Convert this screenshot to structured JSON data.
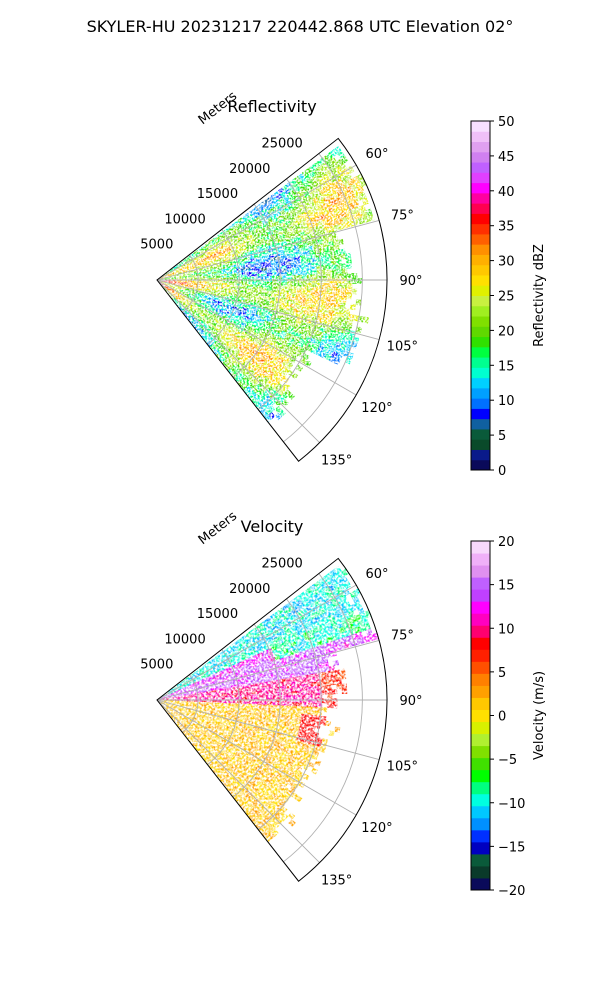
{
  "figure": {
    "title": "SKYLER-HU  20231217  220442.868 UTC Elevation 02°"
  },
  "chart_data": [
    {
      "type": "heatmap",
      "projection": "polar-sector",
      "title": "Reflectivity",
      "range_label": "Meters",
      "range_ticks": [
        "5000",
        "10000",
        "15000",
        "20000",
        "25000"
      ],
      "range_tick_values": [
        5000,
        10000,
        15000,
        20000,
        25000
      ],
      "range_max": 28000,
      "azimuth_range": [
        52,
        142
      ],
      "azimuth_ticks": [
        "60°",
        "75°",
        "90°",
        "105°",
        "120°",
        "135°"
      ],
      "azimuth_tick_values": [
        60,
        75,
        90,
        105,
        120,
        135
      ],
      "grid": true,
      "colorbar": {
        "label": "Reflectivity dBZ",
        "vmin": 0,
        "vmax": 50,
        "ticks": [
          "0",
          "5",
          "10",
          "15",
          "20",
          "25",
          "30",
          "35",
          "40",
          "45",
          "50"
        ],
        "tick_values": [
          0,
          5,
          10,
          15,
          20,
          25,
          30,
          35,
          40,
          45,
          50
        ],
        "colors": [
          "#0a0a5a",
          "#0a1a8a",
          "#0a4a2a",
          "#0a5a3a",
          "#1060a0",
          "#0000ff",
          "#0070ff",
          "#00a0ff",
          "#00d0ff",
          "#00ffd0",
          "#00ff90",
          "#00ff40",
          "#30e000",
          "#60d800",
          "#80e000",
          "#a0ee20",
          "#c8f040",
          "#e0f000",
          "#ffe000",
          "#ffc800",
          "#ffb000",
          "#ff9000",
          "#ff6000",
          "#ff3000",
          "#ff0000",
          "#ff0050",
          "#ff00a0",
          "#ff00ff",
          "#e040ff",
          "#c060ff",
          "#d080f0",
          "#e0a0f0",
          "#f0c0f8",
          "#f8e0ff"
        ]
      },
      "field_description": "Dense echo over the sector; mostly 18–28 dBZ (green/yellow) with localized 30–38 dBZ cores near radar."
    },
    {
      "type": "heatmap",
      "projection": "polar-sector",
      "title": "Velocity",
      "range_label": "Meters",
      "range_ticks": [
        "5000",
        "10000",
        "15000",
        "20000",
        "25000"
      ],
      "range_tick_values": [
        5000,
        10000,
        15000,
        20000,
        25000
      ],
      "range_max": 28000,
      "azimuth_range": [
        52,
        142
      ],
      "azimuth_ticks": [
        "60°",
        "75°",
        "90°",
        "105°",
        "120°",
        "135°"
      ],
      "azimuth_tick_values": [
        60,
        75,
        90,
        105,
        120,
        135
      ],
      "grid": true,
      "colorbar": {
        "label": "Velocity (m/s)",
        "vmin": -20,
        "vmax": 20,
        "ticks": [
          "−20",
          "−15",
          "−10",
          "−5",
          "0",
          "5",
          "10",
          "15",
          "20"
        ],
        "tick_values": [
          -20,
          -15,
          -10,
          -5,
          0,
          5,
          10,
          15,
          20
        ],
        "colors": [
          "#0a0a5a",
          "#0a3a2a",
          "#0a5a3a",
          "#0000c0",
          "#0030ff",
          "#0090ff",
          "#00c8ff",
          "#00ffe0",
          "#00ff80",
          "#00ff00",
          "#40e000",
          "#80e000",
          "#b0f030",
          "#d8f000",
          "#ffe000",
          "#ffc800",
          "#ffa000",
          "#ff8000",
          "#ff5000",
          "#ff2000",
          "#ff0000",
          "#ff0070",
          "#ff00c0",
          "#ff00ff",
          "#c040ff",
          "#c060ff",
          "#e090f0",
          "#f0b0f8",
          "#f8d8fc"
        ]
      },
      "field_description": "North-east part negative (cyan/green ~ −10 m/s), band of +10 m/s (red) to +15 m/s (magenta) near 70–90°, southern part near 0 to +2 m/s (yellow)."
    }
  ]
}
